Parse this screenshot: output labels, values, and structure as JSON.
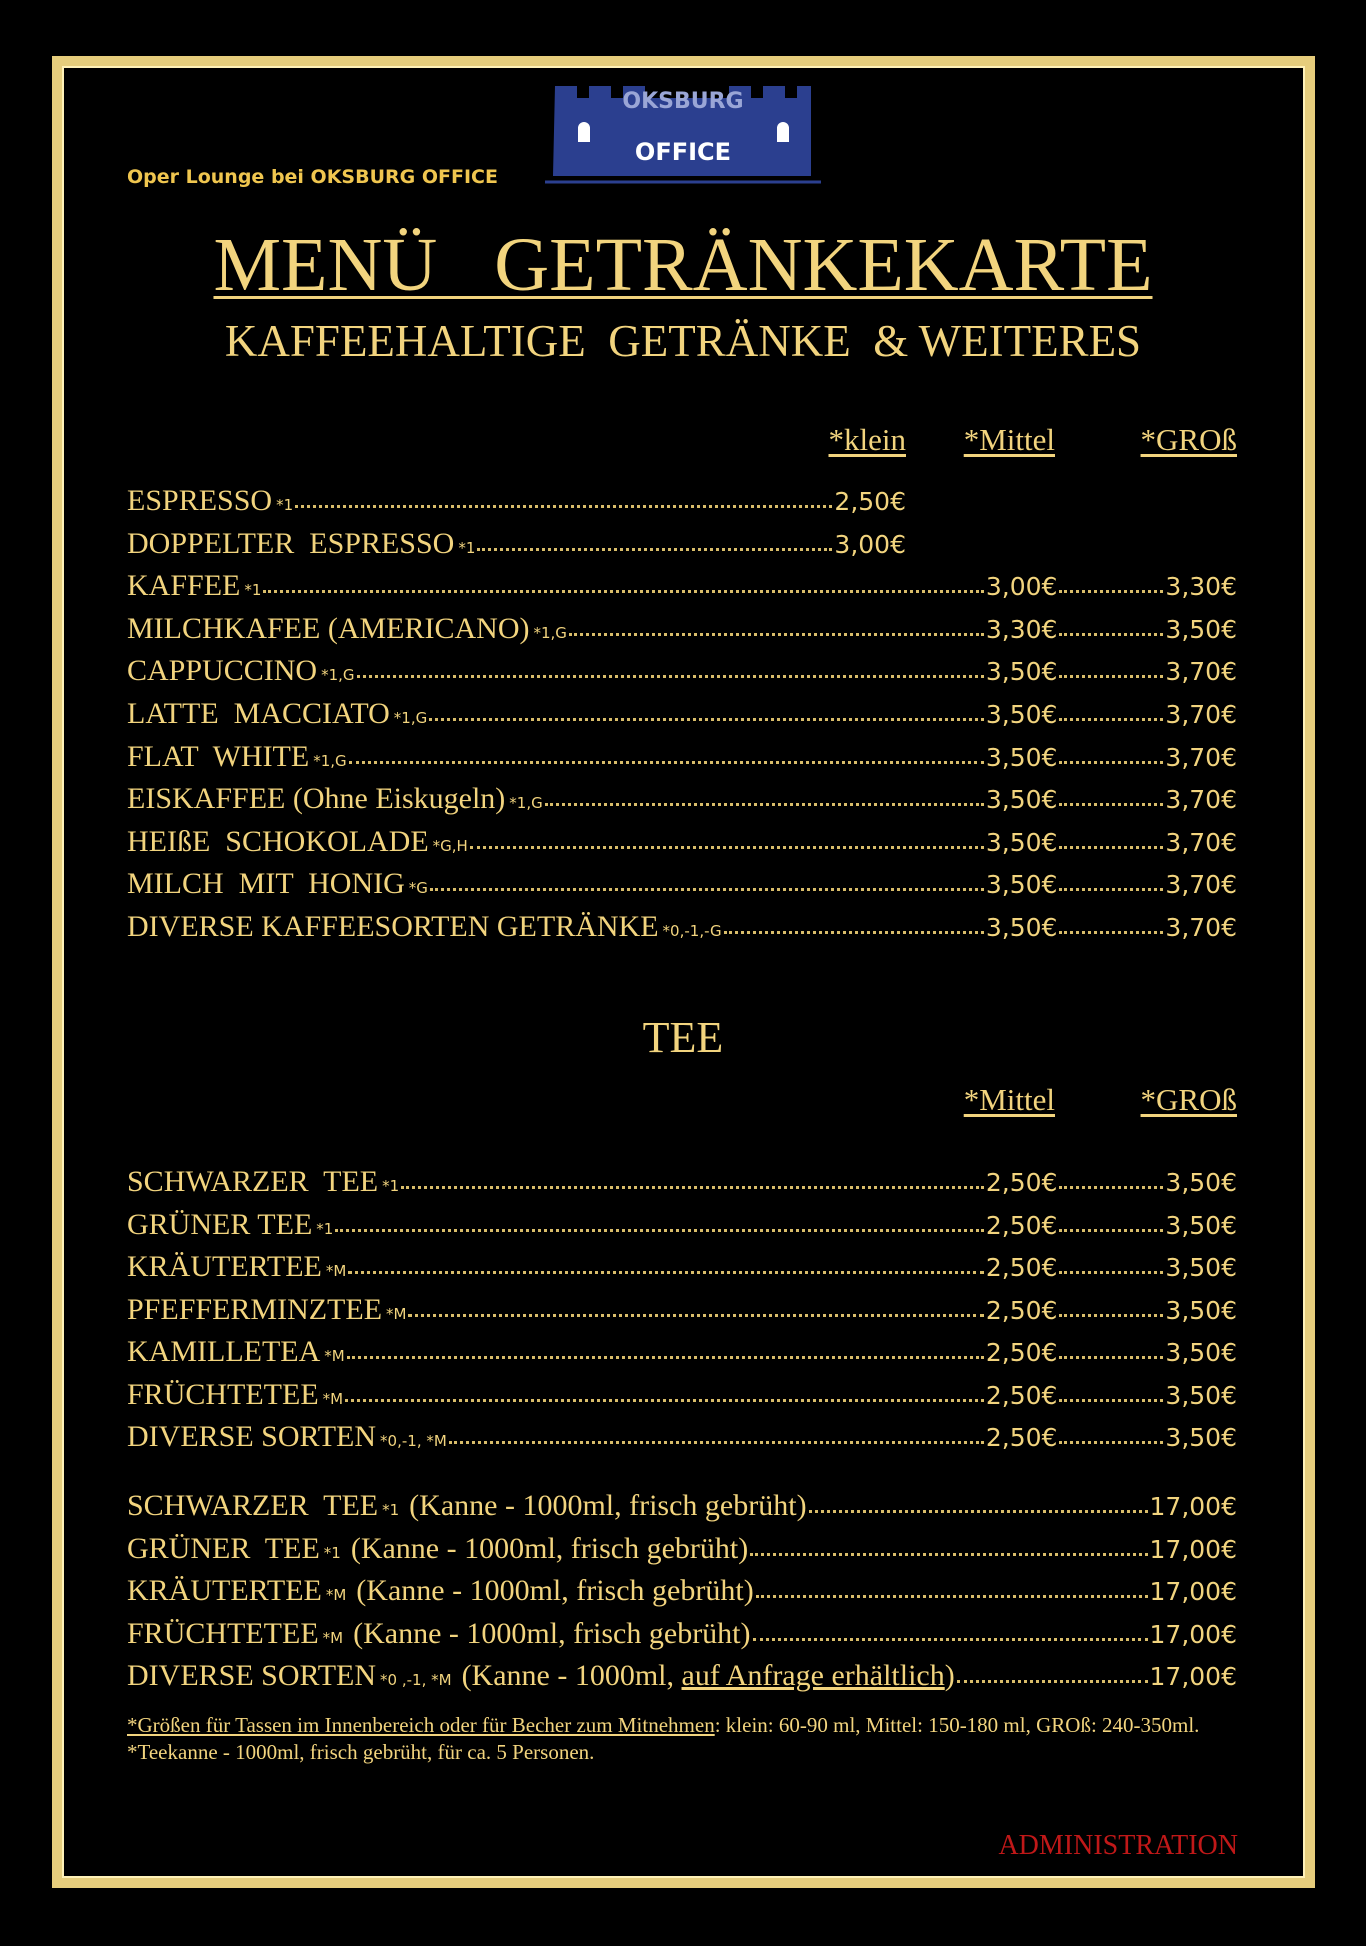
{
  "header": {
    "venue": "Oper Lounge bei OKSBURG OFFICE",
    "logo_top": "OKSBURG",
    "logo_bottom": "OFFICE"
  },
  "title": "MENÜ   GETRÄNKEKARTE",
  "subtitle": "KAFFEEHALTIGE  GETRÄNKE  & WEITERES",
  "coffee": {
    "columns": [
      "*klein",
      "*Mittel",
      "*GROß"
    ],
    "items": [
      {
        "name": "ESPRESSO",
        "note": "*1",
        "klein": "2,50€"
      },
      {
        "name": "DOPPELTER  ESPRESSO",
        "note": "*1",
        "klein": "3,00€"
      },
      {
        "name": "KAFFEE",
        "note": "*1",
        "mittel": "3,00€",
        "gross": "3,30€"
      },
      {
        "name": "MILCHKAFEE (AMERICANO)",
        "note": "*1,G",
        "mittel": "3,30€",
        "gross": "3,50€"
      },
      {
        "name": "CAPPUCCINO",
        "note": "*1,G",
        "mittel": "3,50€",
        "gross": "3,70€"
      },
      {
        "name": "LATTE  MACCIATO",
        "note": "*1,G",
        "mittel": "3,50€",
        "gross": "3,70€"
      },
      {
        "name": "FLAT  WHITE",
        "note": "*1,G",
        "mittel": "3,50€",
        "gross": "3,70€"
      },
      {
        "name": "EISKAFFEE (Ohne Eiskugeln)",
        "note": "*1,G",
        "mittel": "3,50€",
        "gross": "3,70€"
      },
      {
        "name": "HEIßE  SCHOKOLADE",
        "note": "*G,H",
        "mittel": "3,50€",
        "gross": "3,70€"
      },
      {
        "name": "MILCH  MIT  HONIG",
        "note": "*G",
        "mittel": "3,50€",
        "gross": "3,70€"
      },
      {
        "name": "DIVERSE KAFFEESORTEN GETRÄNKE",
        "note": "*0,-1,-G",
        "mittel": "3,50€",
        "gross": "3,70€"
      }
    ]
  },
  "tea": {
    "heading": "TEE",
    "columns": [
      "*Mittel",
      "*GROß"
    ],
    "items": [
      {
        "name": "SCHWARZER  TEE",
        "note": "*1",
        "mittel": "2,50€",
        "gross": "3,50€"
      },
      {
        "name": "GRÜNER TEE",
        "note": "*1",
        "mittel": "2,50€",
        "gross": "3,50€"
      },
      {
        "name": "KRÄUTERTEE",
        "note": "*M",
        "mittel": "2,50€",
        "gross": "3,50€"
      },
      {
        "name": "PFEFFERMINZTEE",
        "note": "*M",
        "mittel": "2,50€",
        "gross": "3,50€"
      },
      {
        "name": "KAMILLETEA",
        "note": "*M",
        "mittel": "2,50€",
        "gross": "3,50€"
      },
      {
        "name": "FRÜCHTETEE",
        "note": "*M",
        "mittel": "2,50€",
        "gross": "3,50€"
      },
      {
        "name": "DIVERSE SORTEN",
        "note": "*0,-1, *M",
        "mittel": "2,50€",
        "gross": "3,50€"
      }
    ],
    "pots": [
      {
        "name": "SCHWARZER  TEE",
        "note": "*1",
        "detail": [
          {
            "text": "(Kanne - 1000ml, frisch gebrüht)",
            "underline": false
          }
        ],
        "price": "17,00€"
      },
      {
        "name": "GRÜNER  TEE",
        "note": "*1",
        "detail": [
          {
            "text": "(Kanne - 1000ml, frisch gebrüht)",
            "underline": false
          }
        ],
        "price": "17,00€"
      },
      {
        "name": "KRÄUTERTEE",
        "note": "*M",
        "detail": [
          {
            "text": "(Kanne - 1000ml, frisch gebrüht)",
            "underline": false
          }
        ],
        "price": "17,00€"
      },
      {
        "name": "FRÜCHTETEE",
        "note": "*M",
        "detail": [
          {
            "text": "(Kanne - 1000ml, frisch gebrüht)",
            "underline": false
          }
        ],
        "price": "17,00€"
      },
      {
        "name": "DIVERSE SORTEN",
        "note": "*0 ,-1, *M",
        "detail": [
          {
            "text": "(Kanne - 1000ml, ",
            "underline": false
          },
          {
            "text": "auf Anfrage erhältlich",
            "underline": true
          },
          {
            "text": ")",
            "underline": false
          }
        ],
        "price": "17,00€"
      }
    ]
  },
  "footnote": [
    {
      "text": "*Größen für Tassen im Innenbereich oder  für Becher  zum Mitnehmen",
      "underline": true
    },
    {
      "text": ": klein: 60-90 ml, Mittel: 150-180 ml, GROß: 240-350ml. *Teekanne - 1000ml, frisch gebrüht, für ca. 5 Personen.",
      "underline": false
    }
  ],
  "footer": "ADMINISTRATION"
}
